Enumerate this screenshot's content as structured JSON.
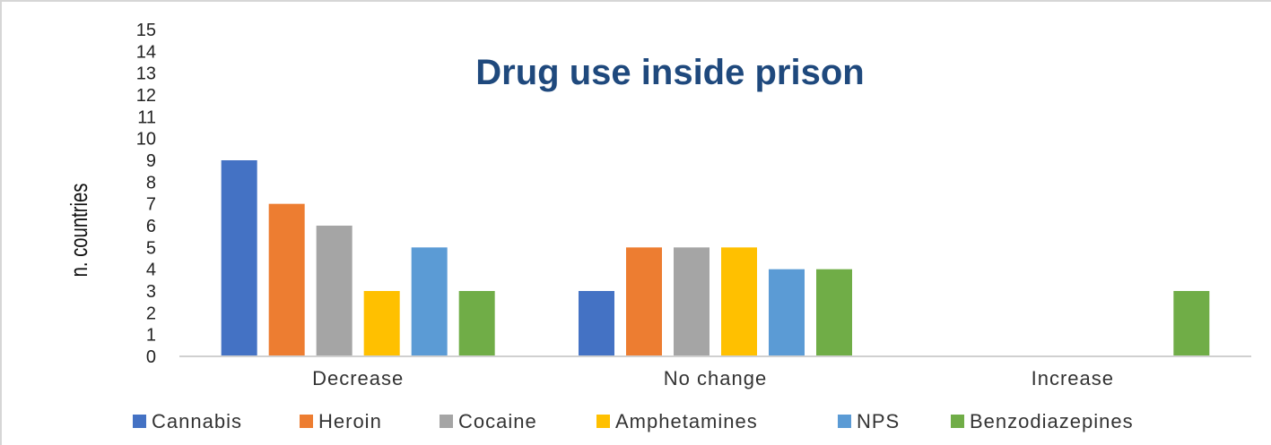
{
  "chart_data": {
    "type": "bar",
    "title": "Drug use inside prison",
    "ylabel": "n. countries",
    "xlabel": "",
    "ylim": [
      0,
      15
    ],
    "yticks": [
      0,
      1,
      2,
      3,
      4,
      5,
      6,
      7,
      8,
      9,
      10,
      11,
      12,
      13,
      14,
      15
    ],
    "grid": false,
    "legend_position": "bottom",
    "categories": [
      "Decrease",
      "No change",
      "Increase"
    ],
    "series": [
      {
        "name": "Cannabis",
        "color": "#4472c4",
        "values": [
          9,
          3,
          0
        ]
      },
      {
        "name": "Heroin",
        "color": "#ed7d31",
        "values": [
          7,
          5,
          0
        ]
      },
      {
        "name": "Cocaine",
        "color": "#a5a5a5",
        "values": [
          6,
          5,
          0
        ]
      },
      {
        "name": "Amphetamines",
        "color": "#ffc000",
        "values": [
          3,
          5,
          0
        ]
      },
      {
        "name": "NPS",
        "color": "#5b9bd5",
        "values": [
          5,
          4,
          0
        ]
      },
      {
        "name": "Benzodiazepines",
        "color": "#70ad47",
        "values": [
          3,
          4,
          3
        ]
      }
    ]
  }
}
